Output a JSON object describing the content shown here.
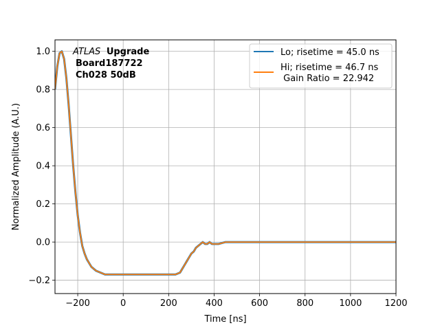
{
  "chart_data": {
    "type": "line",
    "title": "",
    "xlabel": "Time [ns]",
    "ylabel": "Normalized Amplitude (A.U.)",
    "xlim": [
      -300,
      1200
    ],
    "ylim": [
      -0.27,
      1.06
    ],
    "xticks": [
      -200,
      0,
      200,
      400,
      600,
      800,
      1000,
      1200
    ],
    "yticks": [
      -0.2,
      0.0,
      0.2,
      0.4,
      0.6,
      0.8,
      1.0
    ],
    "xtick_labels": [
      "−200",
      "0",
      "200",
      "400",
      "600",
      "800",
      "1000",
      "1200"
    ],
    "ytick_labels": [
      "−0.2",
      "0.0",
      "0.2",
      "0.4",
      "0.6",
      "0.8",
      "1.0"
    ],
    "grid": true,
    "legend_position": "top-right",
    "annotation": {
      "italic": "ATLAS",
      "bold": "Upgrade",
      "line2": "Board187722",
      "line3": "Ch028 50dB"
    },
    "series": [
      {
        "name": "Lo; risetime = 45.0 ns",
        "color": "#1f77b4",
        "x": [
          -300,
          -290,
          -280,
          -270,
          -260,
          -250,
          -240,
          -230,
          -220,
          -210,
          -200,
          -190,
          -180,
          -170,
          -160,
          -150,
          -140,
          -120,
          -100,
          -80,
          -60,
          -40,
          -20,
          0,
          50,
          100,
          150,
          200,
          230,
          250,
          260,
          270,
          280,
          290,
          300,
          310,
          320,
          330,
          340,
          350,
          360,
          370,
          380,
          390,
          400,
          420,
          450,
          500,
          600,
          700,
          800,
          900,
          1000,
          1100,
          1200
        ],
        "y": [
          0.8,
          0.92,
          0.99,
          1.0,
          0.96,
          0.86,
          0.72,
          0.56,
          0.4,
          0.26,
          0.14,
          0.05,
          -0.02,
          -0.06,
          -0.09,
          -0.11,
          -0.13,
          -0.15,
          -0.16,
          -0.17,
          -0.17,
          -0.17,
          -0.17,
          -0.17,
          -0.17,
          -0.17,
          -0.17,
          -0.17,
          -0.17,
          -0.16,
          -0.14,
          -0.12,
          -0.1,
          -0.08,
          -0.06,
          -0.05,
          -0.03,
          -0.02,
          -0.01,
          0.0,
          -0.01,
          -0.01,
          0.0,
          -0.01,
          -0.01,
          -0.01,
          0.0,
          0.0,
          0.0,
          0.0,
          0.0,
          0.0,
          0.0,
          0.0,
          0.0
        ]
      },
      {
        "name": "Hi; risetime = 46.7 ns\n Gain Ratio = 22.942",
        "color": "#ff7f0e",
        "x": [
          -300,
          -290,
          -280,
          -270,
          -260,
          -250,
          -240,
          -230,
          -220,
          -210,
          -200,
          -190,
          -180,
          -170,
          -160,
          -150,
          -140,
          -120,
          -100,
          -80,
          -60,
          -40,
          -20,
          0,
          50,
          100,
          150,
          200,
          230,
          250,
          260,
          270,
          280,
          290,
          300,
          310,
          320,
          330,
          340,
          350,
          360,
          370,
          380,
          390,
          400,
          420,
          450,
          500,
          600,
          700,
          800,
          900,
          1000,
          1100,
          1200
        ],
        "y": [
          0.8,
          0.92,
          0.99,
          1.0,
          0.96,
          0.86,
          0.72,
          0.56,
          0.4,
          0.26,
          0.14,
          0.05,
          -0.02,
          -0.06,
          -0.09,
          -0.11,
          -0.13,
          -0.15,
          -0.16,
          -0.17,
          -0.17,
          -0.17,
          -0.17,
          -0.17,
          -0.17,
          -0.17,
          -0.17,
          -0.17,
          -0.17,
          -0.16,
          -0.14,
          -0.12,
          -0.1,
          -0.08,
          -0.06,
          -0.05,
          -0.03,
          -0.02,
          -0.01,
          0.0,
          -0.01,
          -0.01,
          0.0,
          -0.01,
          -0.01,
          -0.01,
          0.0,
          0.0,
          0.0,
          0.0,
          0.0,
          0.0,
          0.0,
          0.0,
          0.0
        ]
      }
    ]
  }
}
